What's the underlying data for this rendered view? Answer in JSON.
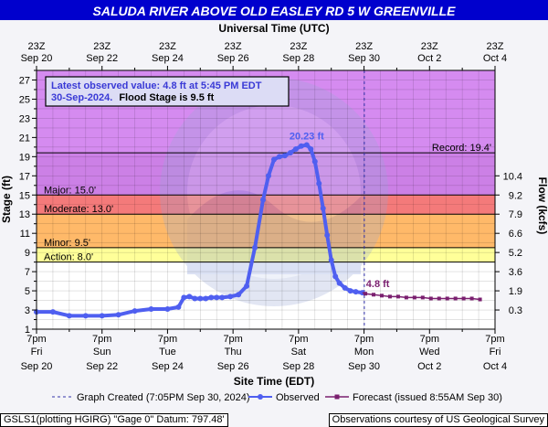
{
  "header": {
    "title": "SALUDA RIVER ABOVE OLD EASLEY RD 5 W GREENVILLE"
  },
  "axes": {
    "top_title": "Universal Time (UTC)",
    "bottom_title": "Site Time (EDT)",
    "left_title": "Stage (ft)",
    "right_title": "Flow (kcfs)"
  },
  "info_box": {
    "line1": "Latest observed value: 4.8 ft at 5:45 PM EDT",
    "line2_date": "30-Sep-2024.",
    "line2_flood": "Flood Stage is 9.5 ft"
  },
  "legend": {
    "graph_created": "Graph Created (7:05PM Sep 30, 2024)",
    "observed": "Observed",
    "forecast": "Forecast (issued 8:55AM Sep 30)"
  },
  "footer": {
    "left": "GSLS1(plotting HGIRG) \"Gage 0\" Datum: 797.48'",
    "right": "Observations courtesy of US Geological Survey"
  },
  "colors": {
    "observed": "#4f5ff0",
    "forecast": "#7a1f6f",
    "record_band": "#d58bf0",
    "major_band": "#cc80e6",
    "moderate_band": "#f47a7a",
    "minor_band": "#ffb969",
    "action_band": "#ffff99",
    "normal_band": "#ffffff",
    "info_text": "#3a3ad6"
  },
  "chart_data": {
    "type": "line",
    "title": "SALUDA RIVER ABOVE OLD EASLEY RD 5 W GREENVILLE",
    "xlabel": "Site Time (EDT)",
    "ylabel": "Stage (ft)",
    "y2label": "Flow (kcfs)",
    "xlim_hours": [
      0,
      336
    ],
    "ylim": [
      1,
      28
    ],
    "y_ticks": [
      1,
      3,
      5,
      7,
      9,
      11,
      13,
      15,
      17,
      19,
      21,
      23,
      25,
      27
    ],
    "y_minor_ticks": [
      2,
      4,
      6,
      8,
      10,
      12,
      14,
      16,
      18,
      20,
      22,
      24,
      26,
      28
    ],
    "bottom_ticks": [
      {
        "line1": "7pm",
        "line2": "Fri",
        "line3": "Sep 20"
      },
      {
        "line1": "7pm",
        "line2": "Sun",
        "line3": "Sep 22"
      },
      {
        "line1": "7pm",
        "line2": "Tue",
        "line3": "Sep 24"
      },
      {
        "line1": "7pm",
        "line2": "Thu",
        "line3": "Sep 26"
      },
      {
        "line1": "7pm",
        "line2": "Sat",
        "line3": "Sep 28"
      },
      {
        "line1": "7pm",
        "line2": "Mon",
        "line3": "Sep 30"
      },
      {
        "line1": "7pm",
        "line2": "Wed",
        "line3": "Oct 2"
      },
      {
        "line1": "7pm",
        "line2": "Fri",
        "line3": "Oct 4"
      }
    ],
    "top_ticks": [
      {
        "line1": "23Z",
        "line2": "Sep 20"
      },
      {
        "line1": "23Z",
        "line2": "Sep 22"
      },
      {
        "line1": "23Z",
        "line2": "Sep 24"
      },
      {
        "line1": "23Z",
        "line2": "Sep 26"
      },
      {
        "line1": "23Z",
        "line2": "Sep 28"
      },
      {
        "line1": "23Z",
        "line2": "Sep 30"
      },
      {
        "line1": "23Z",
        "line2": "Oct  2"
      },
      {
        "line1": "23Z",
        "line2": "Oct  4"
      }
    ],
    "flow_ticks": [
      {
        "stage": 3,
        "label": "0.3"
      },
      {
        "stage": 5,
        "label": "1.9"
      },
      {
        "stage": 7,
        "label": "3.6"
      },
      {
        "stage": 9,
        "label": "5.2"
      },
      {
        "stage": 11,
        "label": "6.6"
      },
      {
        "stage": 13,
        "label": "7.9"
      },
      {
        "stage": 15,
        "label": "9.2"
      },
      {
        "stage": 17,
        "label": "10.4"
      }
    ],
    "thresholds": [
      {
        "name": "Record",
        "label": "Record: 19.4'",
        "stage": 19.4
      },
      {
        "name": "Major",
        "label": "Major: 15.0'",
        "stage": 15.0
      },
      {
        "name": "Moderate",
        "label": "Moderate: 13.0'",
        "stage": 13.0
      },
      {
        "name": "Minor",
        "label": "Minor: 9.5'",
        "stage": 9.5
      },
      {
        "name": "Action",
        "label": "Action: 8.0'",
        "stage": 8.0
      }
    ],
    "now_hours": 240.2,
    "peak": {
      "hours": 198,
      "stage": 20.23,
      "label": "20.23 ft"
    },
    "latest": {
      "hours": 238.8,
      "stage": 4.8,
      "label": "4.8 ft"
    },
    "series": [
      {
        "name": "Observed",
        "hours": [
          0,
          12,
          24,
          36,
          48,
          60,
          72,
          84,
          96,
          104,
          108,
          112,
          116,
          120,
          124,
          128,
          132,
          136,
          142,
          148,
          154,
          160,
          166,
          170,
          174,
          178,
          182,
          186,
          190,
          194,
          198,
          201,
          204,
          207,
          210,
          213,
          216,
          219,
          222,
          226,
          230,
          234,
          238.8
        ],
        "stage": [
          2.8,
          2.8,
          2.4,
          2.4,
          2.4,
          2.5,
          2.9,
          3.1,
          3.1,
          3.3,
          4.3,
          4.4,
          4.2,
          4.2,
          4.2,
          4.3,
          4.3,
          4.3,
          4.4,
          4.6,
          5.5,
          9.5,
          14.5,
          17.0,
          18.7,
          19.0,
          19.1,
          19.4,
          19.8,
          20.1,
          20.23,
          19.8,
          18.5,
          16.2,
          13.6,
          10.8,
          8.2,
          6.5,
          5.8,
          5.3,
          5.0,
          4.9,
          4.8
        ]
      },
      {
        "name": "Forecast",
        "hours": [
          241,
          247,
          253,
          259,
          265,
          271,
          277,
          283,
          289,
          295,
          301,
          307,
          313,
          319,
          325
        ],
        "stage": [
          4.7,
          4.6,
          4.5,
          4.4,
          4.4,
          4.3,
          4.3,
          4.3,
          4.2,
          4.2,
          4.2,
          4.2,
          4.2,
          4.2,
          4.1
        ]
      }
    ]
  }
}
